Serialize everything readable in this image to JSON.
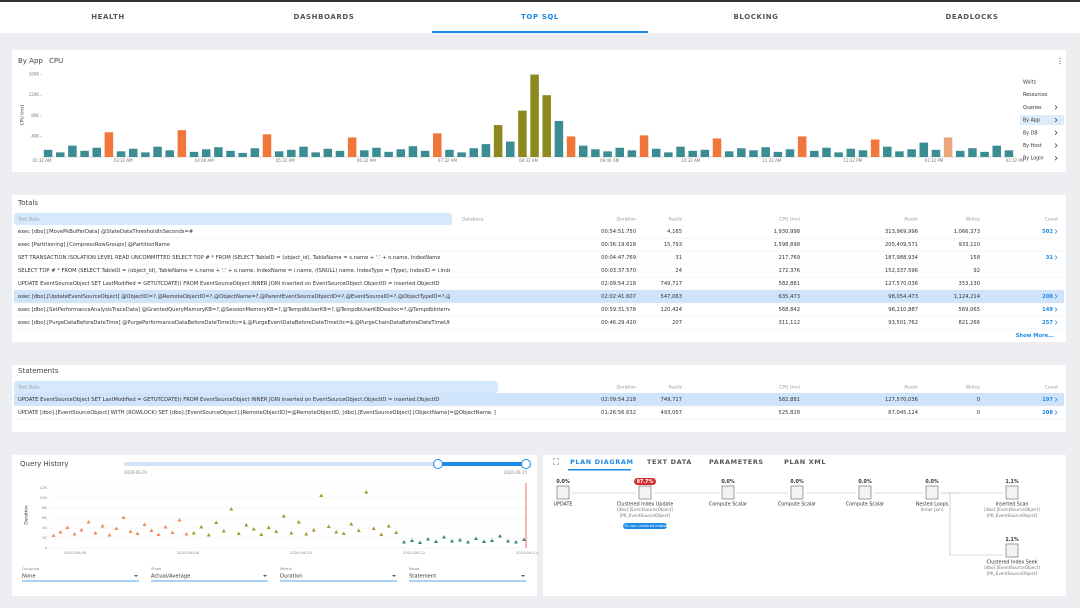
{
  "tabs": {
    "items": [
      "HEALTH",
      "DASHBOARDS",
      "TOP SQL",
      "BLOCKING",
      "DEADLOCKS"
    ],
    "active": 2
  },
  "top_chart": {
    "title": "By App",
    "metric": "CPU",
    "y_label": "CPU (ms)",
    "ylim": [
      0,
      165000
    ],
    "yticks": [
      {
        "value": 40000,
        "label": "40K"
      },
      {
        "value": 80000,
        "label": "80K"
      },
      {
        "value": 120000,
        "label": "120K"
      },
      {
        "value": 160000,
        "label": "160K"
      }
    ],
    "x_labels": [
      "02:32 AM",
      "03:32 AM",
      "04:48 AM",
      "05:32 AM",
      "06:32 AM",
      "07:32 AM",
      "08:32 AM",
      "09:40 AM",
      "10:32 AM",
      "11:32 AM",
      "12:32 PM",
      "01:32 PM",
      "02:32 PM"
    ],
    "values": [
      14000,
      9000,
      22000,
      12000,
      18000,
      48000,
      11000,
      16000,
      9000,
      20000,
      13000,
      52000,
      10000,
      15000,
      19000,
      12000,
      8000,
      17000,
      44000,
      11000,
      14000,
      20000,
      9000,
      16000,
      12000,
      38000,
      13000,
      18000,
      10000,
      15000,
      21000,
      12000,
      46000,
      14000,
      9000,
      17000,
      25000,
      62000,
      30000,
      90000,
      160000,
      120000,
      70000,
      40000,
      22000,
      15000,
      11000,
      18000,
      13000,
      42000,
      16000,
      9000,
      20000,
      12000,
      14000,
      36000,
      11000,
      17000,
      13000,
      19000,
      10000,
      15000,
      40000,
      12000,
      18000,
      9000,
      16000,
      13000,
      34000,
      20000,
      11000,
      15000,
      28000,
      14000,
      38000,
      12000,
      17000,
      10000,
      22000,
      13000
    ],
    "colors": [
      "#3c8c94",
      "#3c8c94",
      "#3c8c94",
      "#3c8c94",
      "#3c8c94",
      "#f0763a",
      "#3c8c94",
      "#3c8c94",
      "#3c8c94",
      "#3c8c94",
      "#3c8c94",
      "#f0763a",
      "#3c8c94",
      "#3c8c94",
      "#3c8c94",
      "#3c8c94",
      "#3c8c94",
      "#3c8c94",
      "#f0763a",
      "#3c8c94",
      "#3c8c94",
      "#3c8c94",
      "#3c8c94",
      "#3c8c94",
      "#3c8c94",
      "#f0763a",
      "#3c8c94",
      "#3c8c94",
      "#3c8c94",
      "#3c8c94",
      "#3c8c94",
      "#3c8c94",
      "#f0763a",
      "#3c8c94",
      "#3c8c94",
      "#3c8c94",
      "#3c8c94",
      "#8c8a1e",
      "#3c8c94",
      "#8c8a1e",
      "#8c8a1e",
      "#8c8a1e",
      "#3c8c94",
      "#f0763a",
      "#3c8c94",
      "#3c8c94",
      "#3c8c94",
      "#3c8c94",
      "#3c8c94",
      "#f0763a",
      "#3c8c94",
      "#3c8c94",
      "#3c8c94",
      "#3c8c94",
      "#3c8c94",
      "#f0763a",
      "#3c8c94",
      "#3c8c94",
      "#3c8c94",
      "#3c8c94",
      "#3c8c94",
      "#3c8c94",
      "#f0763a",
      "#3c8c94",
      "#3c8c94",
      "#3c8c94",
      "#3c8c94",
      "#3c8c94",
      "#f0763a",
      "#3c8c94",
      "#3c8c94",
      "#3c8c94",
      "#3c8c94",
      "#3c8c94",
      "#e8a87c",
      "#3c8c94",
      "#3c8c94",
      "#3c8c94",
      "#3c8c94",
      "#3c8c94"
    ]
  },
  "side_menu": {
    "items": [
      "Waits",
      "Resources",
      "Queries",
      "By App",
      "By DB",
      "By Host",
      "By Login"
    ],
    "active": 3
  },
  "totals": {
    "title": "Totals",
    "headers": [
      "Text Data",
      "Database",
      "Duration",
      "Reads",
      "CPU (ms)",
      "Reads",
      "Writes",
      "Count"
    ],
    "selected_row": 5,
    "show_more": "Show More...",
    "rows": [
      {
        "text": "exec [dbo].[MovePkBufferData] @StateDataThresholdInSeconds=#",
        "duration": "00:54:51.750",
        "reads": "4,165",
        "cpu": "1,930,998",
        "logical_reads": "313,969,996",
        "writes": "1,066,373",
        "count": "502"
      },
      {
        "text": "exec [Partitioning].[CompressRowGroups] @PartitionName",
        "duration": "00:36:19.618",
        "reads": "15,793",
        "cpu": "1,598,898",
        "logical_reads": "205,409,571",
        "writes": "933,110"
      },
      {
        "text": "SET TRANSACTION ISOLATION LEVEL READ UNCOMMITTED SELECT TOP # * FROM (SELECT TableID = (object_id), TableName = s.name + '.' + o.name, IndexName",
        "duration": "00:04:47.769",
        "reads": "31",
        "cpu": "217,769",
        "logical_reads": "187,988,934",
        "writes": "158",
        "count": "31"
      },
      {
        "text": "SELECT TOP # * FROM (SELECT TableID = (object_id), TableName = s.name + '.' + o.name, IndexName = i.name, (ISNULL) name, IndexType = (Type), IndexID = i.index_id, IsPartitioned = CONV",
        "duration": "00:03:37.570",
        "reads": "24",
        "cpu": "172,376",
        "logical_reads": "152,337,596",
        "writes": "92"
      },
      {
        "text": "UPDATE EventSourceObject SET LastModified = GETUTCDATE() FROM EventSourceObject INNER JOIN inserted on EventSourceObject.ObjectID = inserted.ObjectID",
        "duration": "02:09:54.218",
        "reads": "749,717",
        "cpu": "582,881",
        "logical_reads": "127,570,036",
        "writes": "353,130"
      },
      {
        "text": "exec [dbo].[UpdateEventSourceObject] @ObjectID=?,@RemoteObjectID=?,@ObjectName=?,@ParentEventSourceObjectID=?,@EventSourceID=?,@ObjectTypeID=?,@VirtualObjectTypeID=#",
        "duration": "02:02:41.607",
        "reads": "547,063",
        "cpu": "635,473",
        "logical_reads": "98,054,473",
        "writes": "1,124,214",
        "count": "208"
      },
      {
        "text": "exec [dbo].[SetPerformanceAnalysisTraceData] @GrantedQueryMemoryKB=?,@SessionMemoryKB=?,@TempdbUserKB=?,@TempdbUserKBDealloc=?,@TempdbInternalKB=?,@Tempdbinte",
        "duration": "00:59:31.578",
        "reads": "120,424",
        "cpu": "568,842",
        "logical_reads": "96,210,887",
        "writes": "569,065",
        "count": "149"
      },
      {
        "text": "exec [dbo].[PurgeDataBeforeDateTime] @PurgePerformanceDataBeforeDateTimeUtc=$,@PurgeEventDataBeforeDateTimeUtc=$,@PurgeChainDataBeforeDateTimeUtc=$,@PurgeActionLogD",
        "duration": "00:46:29.420",
        "reads": "207",
        "cpu": "311,112",
        "logical_reads": "93,501,762",
        "writes": "821,266",
        "count": "257"
      }
    ]
  },
  "statements": {
    "title": "Statements",
    "headers": [
      "Text Data",
      "Duration",
      "Reads",
      "CPU (ms)",
      "Reads",
      "Writes",
      "Count"
    ],
    "selected_row": 0,
    "rows": [
      {
        "text": "UPDATE EventSourceObject SET LastModified = GETUTCDATE() FROM EventSourceObject INNER JOIN inserted on EventSourceObject.ObjectID = inserted.ObjectID",
        "duration": "02:09:54.218",
        "reads": "749,717",
        "cpu": "582,881",
        "logical_reads": "127,570,036",
        "writes": "0",
        "count": "197"
      },
      {
        "text": "UPDATE [dbo].[EventSourceObject] WITH (ROWLOCK) SET [dbo].[EventSourceObject].[RemoteObjectID]=@RemoteObjectID, [dbo].[EventSourceObject].[ObjectName]=@ObjectName, [dbo].[EventSourceObje",
        "duration": "01:26:56.632",
        "reads": "493,057",
        "cpu": "525,828",
        "logical_reads": "67,045,124",
        "writes": "0",
        "count": "208"
      }
    ]
  },
  "query_history": {
    "title": "Query History",
    "range_start": "2020-06-01",
    "range_end": "2020-06-15",
    "y_label": "Duration",
    "ylim": [
      0,
      13000
    ],
    "yticks": [
      0,
      {
        "value": 2000,
        "label": "2K"
      },
      {
        "value": 4000,
        "label": "4K"
      },
      {
        "value": 6000,
        "label": "6K"
      },
      {
        "value": 8000,
        "label": "8K"
      },
      {
        "value": 10000,
        "label": "10K"
      },
      {
        "value": 12000,
        "label": "12K"
      }
    ],
    "x_labels": [
      "2020-06-06",
      "2020-06-08",
      "2020-06-10",
      "2020-06-12",
      "2020-06-14"
    ],
    "series": [
      {
        "color": "#f08a5d",
        "values": [
          2500,
          3200,
          4100,
          2800,
          3600,
          5200,
          3000,
          4400,
          2600,
          3900,
          6100,
          3300,
          2900,
          4700,
          3500,
          2700,
          4200,
          3100,
          5600,
          2800
        ]
      },
      {
        "color": "#a59a2a",
        "values": [
          3000,
          4200,
          2600,
          5100,
          3400,
          7800,
          2900,
          4600,
          3800,
          2700,
          4100,
          3300,
          6400,
          3000,
          5200,
          2800,
          3600,
          10500,
          4300,
          3200,
          2900,
          4800,
          3500,
          11200,
          3900,
          2700,
          4400,
          3100
        ]
      },
      {
        "color": "#3a8a7a",
        "values": [
          1200,
          1500,
          1100,
          1800,
          1300,
          2200,
          1400,
          1600,
          1200,
          1900,
          1300,
          1500,
          2400,
          1400,
          1200,
          1700
        ]
      }
    ],
    "controls": [
      {
        "label": "Grouping",
        "value": "None"
      },
      {
        "label": "Show",
        "value": "Actual/Average"
      },
      {
        "label": "Metric",
        "value": "Duration"
      },
      {
        "label": "Mode",
        "value": "Statement"
      }
    ]
  },
  "plan": {
    "tabs": [
      "PLAN DIAGRAM",
      "TEXT DATA",
      "PARAMETERS",
      "PLAN XML"
    ],
    "active": 0,
    "nodes": [
      {
        "percent": "0.0%",
        "label": "UPDATE",
        "lines": []
      },
      {
        "percent": "97.7%",
        "label": "Clustered Index Update",
        "lines": [
          "[dbo].[EventSourceObject]",
          "[PK_EventSourceObject]"
        ],
        "badge": "+13 non-clustered indexes"
      },
      {
        "percent": "0.0%",
        "label": "Compute Scalar",
        "lines": []
      },
      {
        "percent": "0.0%",
        "label": "Compute Scalar",
        "lines": []
      },
      {
        "percent": "0.0%",
        "label": "Compute Scalar",
        "lines": []
      },
      {
        "percent": "0.0%",
        "label": "Nested Loops",
        "lines": [
          "(Inner Join)"
        ]
      },
      {
        "percent": "1.1%",
        "label": "Inserted Scan",
        "lines": [
          "[dbo].[EventSourceObject]",
          "[PK_EventSourceObject]"
        ]
      },
      {
        "percent": "1.1%",
        "label": "Clustered Index Seek",
        "lines": [
          "[dbo].[EventSourceObject]",
          "[PK_EventSourceObject]"
        ]
      }
    ]
  }
}
